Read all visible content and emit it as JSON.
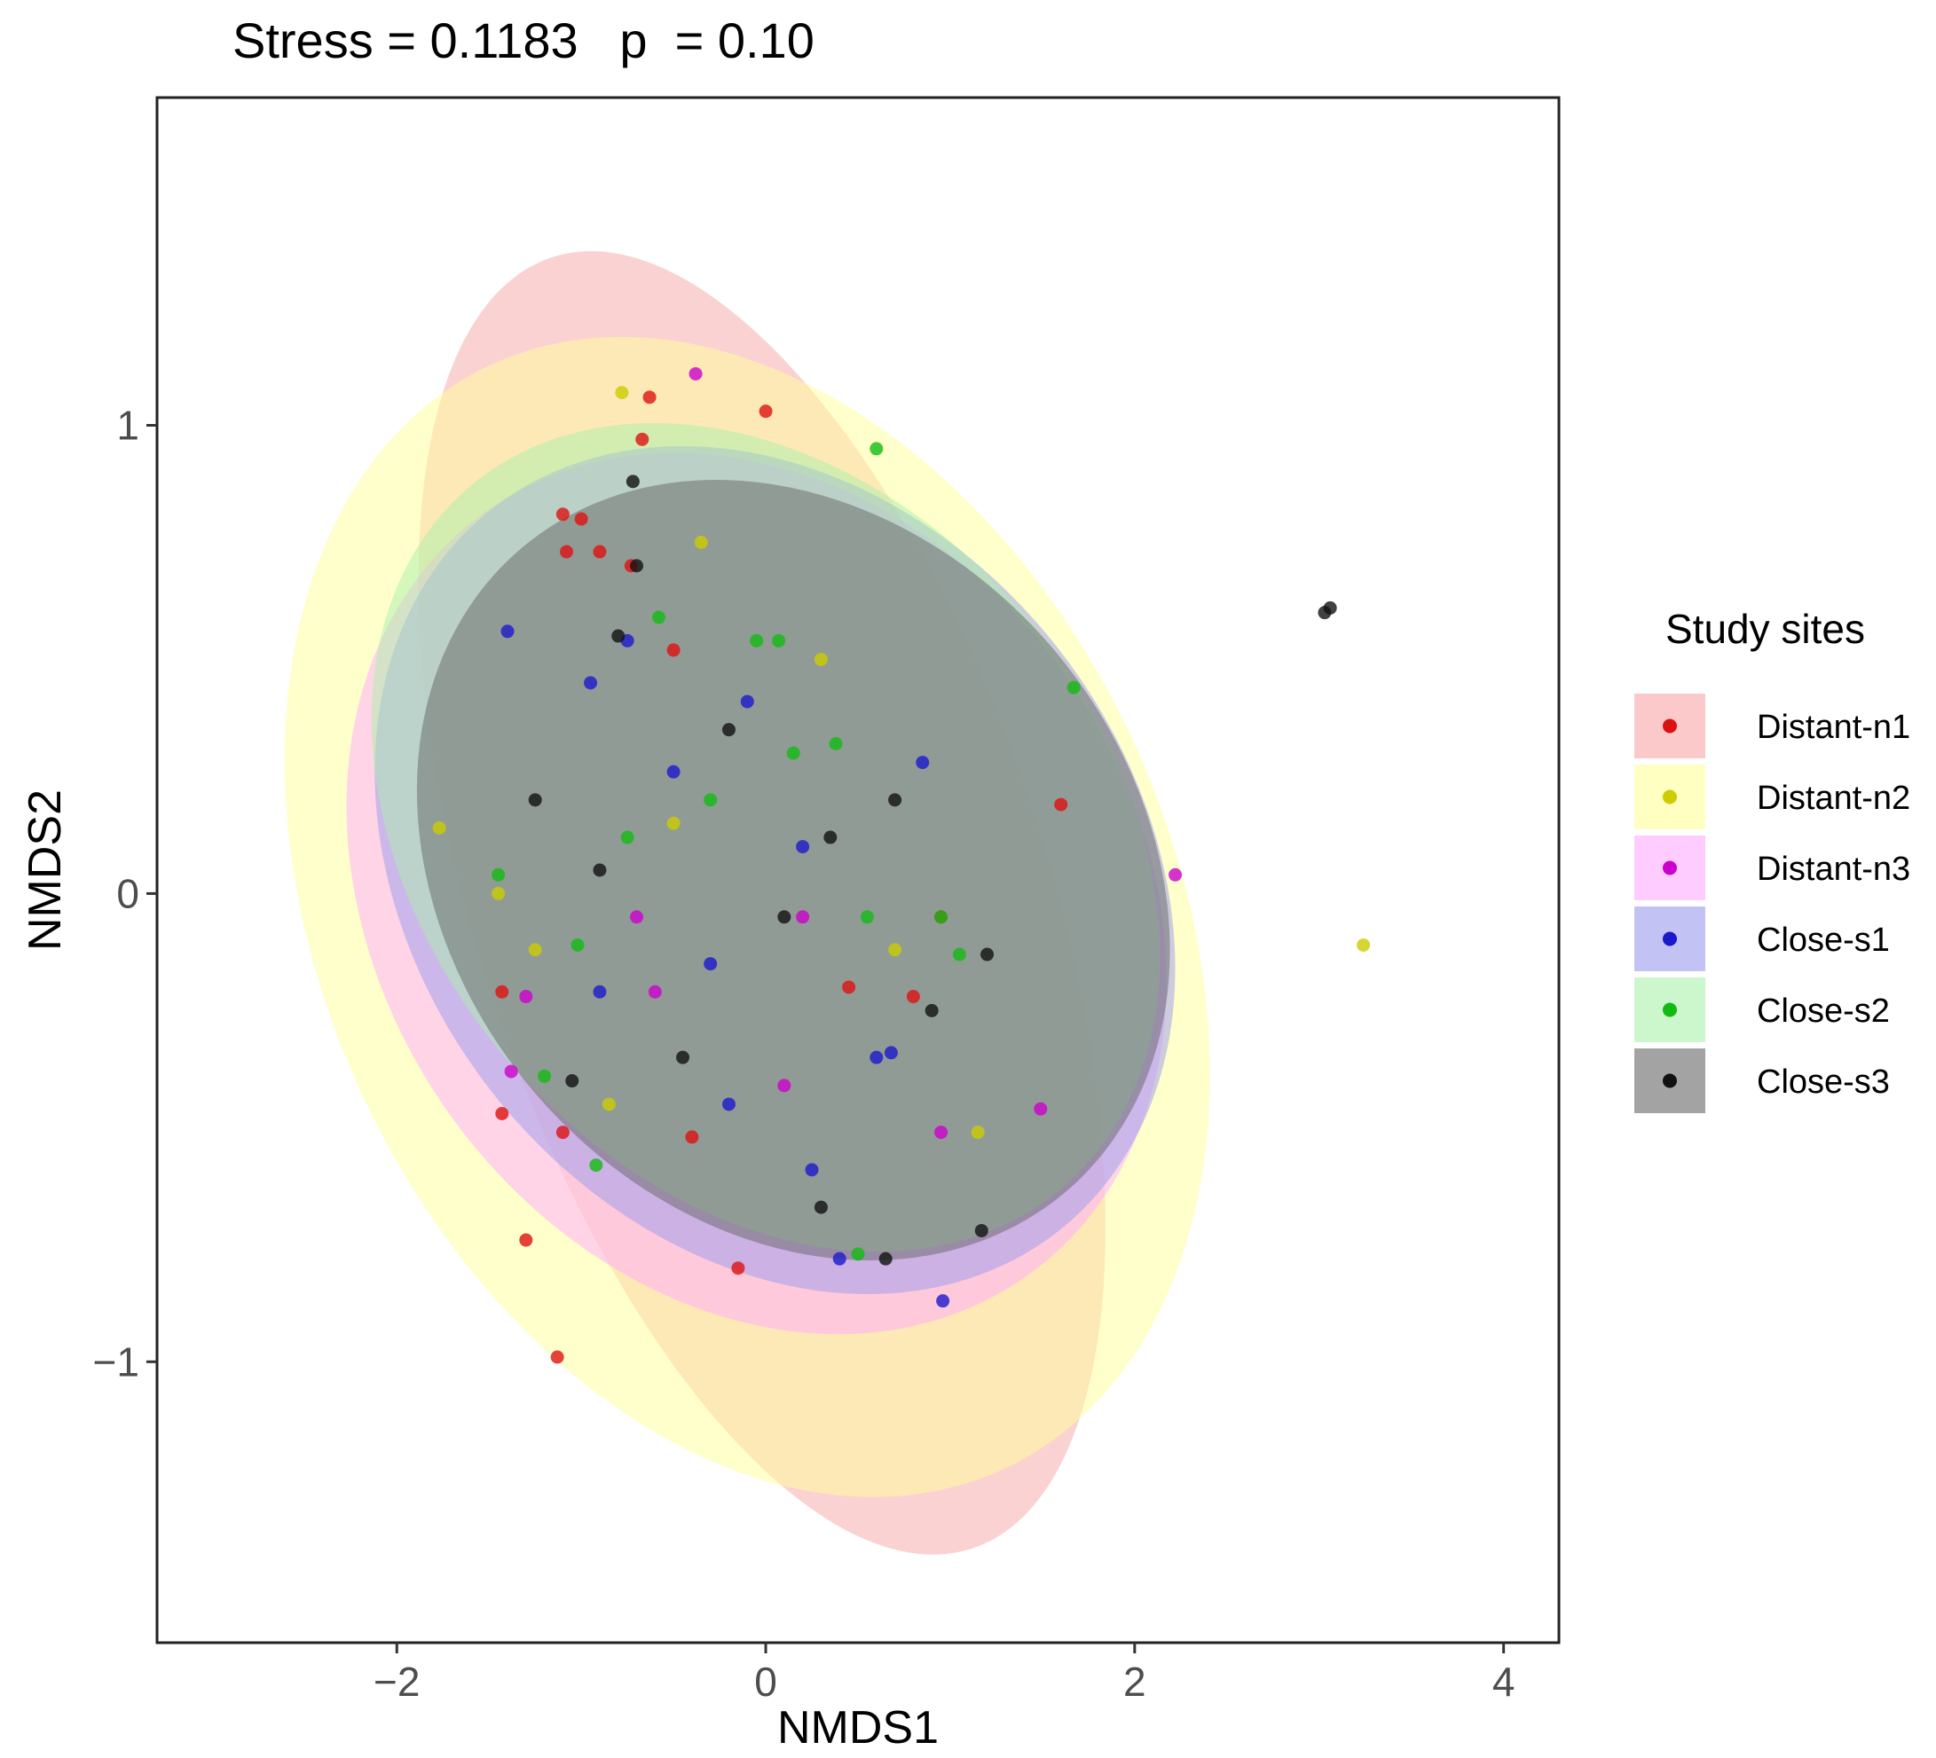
{
  "chart_data": {
    "type": "scatter",
    "title": "Stress = 0.1183   p  = 0.10",
    "xlabel": "NMDS1",
    "ylabel": "NMDS2",
    "xlim": [
      -3.3,
      4.3
    ],
    "ylim": [
      -1.6,
      1.7
    ],
    "xticks": [
      -2,
      0,
      2,
      4
    ],
    "xtick_labels": [
      "−2",
      "0",
      "2",
      "4"
    ],
    "yticks": [
      -1,
      0,
      1
    ],
    "ytick_labels": [
      "−1",
      "0",
      "1"
    ],
    "legend": {
      "title": "Study sites",
      "position": "right"
    },
    "series": [
      {
        "name": "Distant-n1",
        "color": "#dd1111",
        "fill": "#f8a5a5",
        "ellipse": {
          "cx": -0.02,
          "cy": -0.02,
          "rx": 1.55,
          "ry": 1.45,
          "angle": -18
        },
        "points": [
          [
            -0.63,
            1.06
          ],
          [
            0.0,
            1.03
          ],
          [
            -0.67,
            0.97
          ],
          [
            -1.1,
            0.81
          ],
          [
            -1.0,
            0.8
          ],
          [
            -1.08,
            0.73
          ],
          [
            -0.9,
            0.73
          ],
          [
            -0.73,
            0.7
          ],
          [
            -0.5,
            0.52
          ],
          [
            1.6,
            0.19
          ],
          [
            -1.43,
            -0.21
          ],
          [
            -1.43,
            -0.47
          ],
          [
            -1.1,
            -0.51
          ],
          [
            -1.3,
            -0.74
          ],
          [
            -1.13,
            -0.99
          ],
          [
            -0.15,
            -0.8
          ],
          [
            0.45,
            -0.2
          ],
          [
            0.8,
            -0.22
          ],
          [
            -0.4,
            -0.52
          ],
          [
            0.95,
            -0.05
          ]
        ]
      },
      {
        "name": "Distant-n2",
        "color": "#cccc00",
        "fill": "#ffff99",
        "ellipse": {
          "cx": -0.1,
          "cy": -0.05,
          "rx": 2.3,
          "ry": 1.3,
          "angle": -25
        },
        "points": [
          [
            -0.78,
            1.07
          ],
          [
            -0.35,
            0.75
          ],
          [
            3.24,
            -0.11
          ],
          [
            -1.77,
            0.14
          ],
          [
            -1.45,
            0.0
          ],
          [
            -1.25,
            -0.12
          ],
          [
            -0.85,
            -0.45
          ],
          [
            0.7,
            -0.12
          ],
          [
            1.15,
            -0.51
          ],
          [
            -0.5,
            0.15
          ],
          [
            0.3,
            0.5
          ]
        ]
      },
      {
        "name": "Distant-n3",
        "color": "#cc00cc",
        "fill": "#ffaaff",
        "ellipse": {
          "cx": -0.05,
          "cy": 0.0,
          "rx": 2.05,
          "ry": 1.0,
          "angle": -35
        },
        "points": [
          [
            -0.38,
            1.11
          ],
          [
            2.22,
            0.04
          ],
          [
            -1.38,
            -0.38
          ],
          [
            -1.3,
            -0.22
          ],
          [
            1.49,
            -0.46
          ],
          [
            0.95,
            -0.51
          ],
          [
            -0.7,
            -0.05
          ],
          [
            0.2,
            -0.05
          ],
          [
            -0.6,
            -0.21
          ],
          [
            0.1,
            -0.41
          ]
        ]
      },
      {
        "name": "Close-s1",
        "color": "#1a1acc",
        "fill": "#9999ee",
        "ellipse": {
          "cx": 0.05,
          "cy": 0.05,
          "rx": 1.95,
          "ry": 0.98,
          "angle": -38
        },
        "points": [
          [
            0.96,
            -0.87
          ],
          [
            -1.4,
            0.56
          ],
          [
            -0.75,
            0.54
          ],
          [
            -0.95,
            0.45
          ],
          [
            0.85,
            0.28
          ],
          [
            -0.5,
            0.26
          ],
          [
            -0.1,
            0.41
          ],
          [
            -0.3,
            -0.15
          ],
          [
            0.6,
            -0.35
          ],
          [
            0.25,
            -0.59
          ],
          [
            -0.2,
            -0.45
          ],
          [
            0.68,
            -0.34
          ],
          [
            0.2,
            0.1
          ],
          [
            -0.9,
            -0.21
          ],
          [
            0.4,
            -0.78
          ]
        ]
      },
      {
        "name": "Close-s2",
        "color": "#11bb11",
        "fill": "#aaf0aa",
        "ellipse": {
          "cx": 0.0,
          "cy": 0.12,
          "rx": 1.85,
          "ry": 0.98,
          "angle": -40
        },
        "points": [
          [
            0.6,
            0.95
          ],
          [
            1.67,
            0.44
          ],
          [
            -0.58,
            0.59
          ],
          [
            -0.05,
            0.54
          ],
          [
            0.07,
            0.54
          ],
          [
            -0.92,
            -0.58
          ],
          [
            -1.2,
            -0.39
          ],
          [
            0.5,
            -0.77
          ],
          [
            -1.45,
            0.04
          ],
          [
            0.95,
            -0.05
          ],
          [
            1.05,
            -0.13
          ],
          [
            0.55,
            -0.05
          ],
          [
            -0.3,
            0.2
          ],
          [
            0.15,
            0.3
          ],
          [
            -0.75,
            0.12
          ],
          [
            0.38,
            0.32
          ],
          [
            -1.02,
            -0.11
          ]
        ]
      },
      {
        "name": "Close-s3",
        "color": "#111111",
        "fill": "#666666",
        "ellipse": {
          "cx": 0.15,
          "cy": 0.05,
          "rx": 1.85,
          "ry": 0.9,
          "angle": -40
        },
        "points": [
          [
            3.03,
            0.6
          ],
          [
            3.06,
            0.61
          ],
          [
            -0.72,
            0.88
          ],
          [
            -0.7,
            0.7
          ],
          [
            -1.25,
            0.2
          ],
          [
            1.2,
            -0.13
          ],
          [
            1.17,
            -0.72
          ],
          [
            0.65,
            -0.78
          ],
          [
            0.3,
            -0.67
          ],
          [
            -0.8,
            0.55
          ],
          [
            -0.2,
            0.35
          ],
          [
            0.35,
            0.12
          ],
          [
            -0.9,
            0.05
          ],
          [
            0.7,
            0.2
          ],
          [
            -0.45,
            -0.35
          ],
          [
            -1.05,
            -0.4
          ],
          [
            0.9,
            -0.25
          ],
          [
            0.1,
            -0.05
          ]
        ]
      }
    ]
  }
}
